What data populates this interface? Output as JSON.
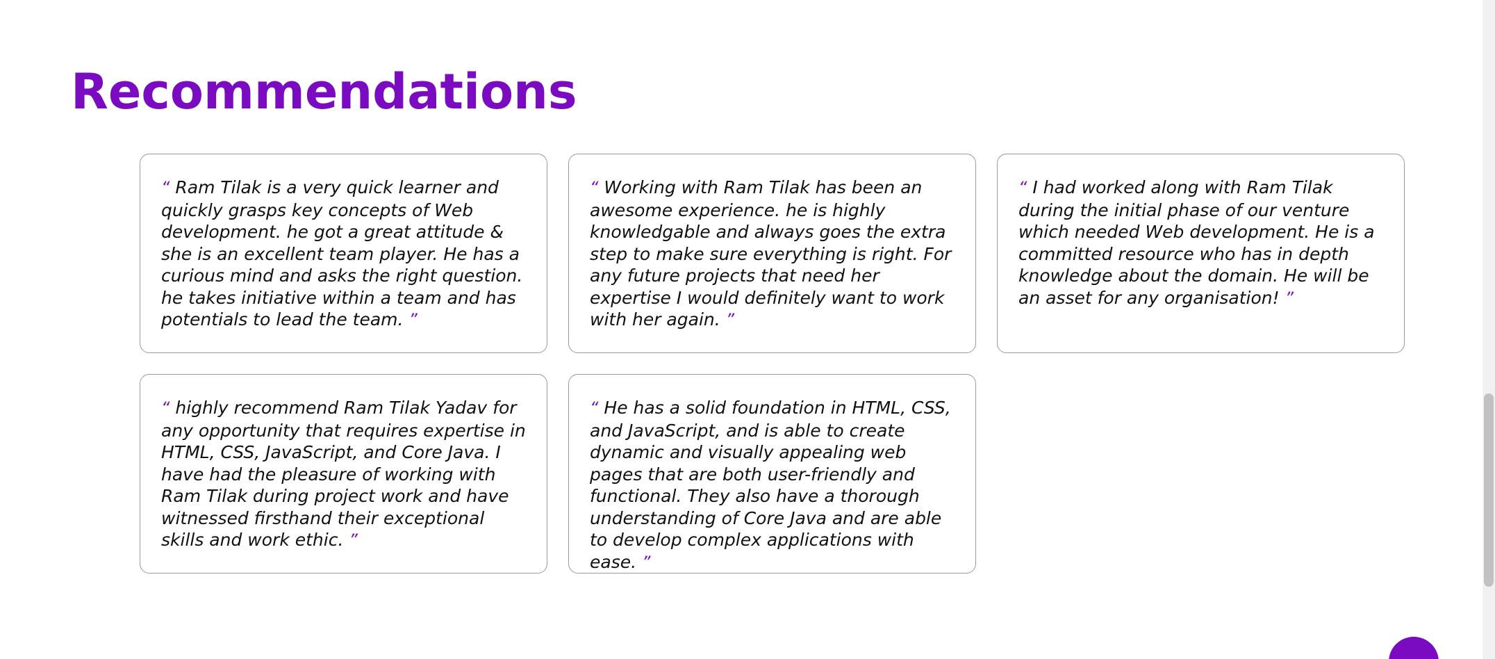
{
  "section": {
    "title": "Recommendations"
  },
  "quote_marks": {
    "open": "“",
    "close": "”"
  },
  "recommendations": [
    {
      "text": "Ram Tilak is a very quick learner and quickly grasps key concepts of Web development. he got a great attitude & she is an excellent team player. He has a curious mind and asks the right question. he takes initiative within a team and has potentials to lead the team."
    },
    {
      "text": "Working with Ram Tilak has been an awesome experience. he is highly knowledgable and always goes the extra step to make sure everything is right. For any future projects that need her expertise I would definitely want to work with her again."
    },
    {
      "text": "I had worked along with Ram Tilak during the initial phase of our venture which needed Web development. He is a committed resource who has in depth knowledge about the domain. He will be an asset for any organisation!"
    },
    {
      "text": "highly recommend Ram Tilak Yadav for any opportunity that requires expertise in HTML, CSS, JavaScript, and Core Java. I have had the pleasure of working with Ram Tilak during project work and have witnessed firsthand their exceptional skills and work ethic."
    },
    {
      "text": "He has a solid foundation in HTML, CSS, and JavaScript, and is able to create dynamic and visually appealing web pages that are both user-friendly and functional. They also have a thorough understanding of Core Java and are able to develop complex applications with ease."
    }
  ],
  "colors": {
    "accent": "#7a0bc0",
    "text": "#111111",
    "card_border": "#9a9a9a"
  },
  "icons": {
    "scroll_to_top": "scroll-to-top-button"
  }
}
